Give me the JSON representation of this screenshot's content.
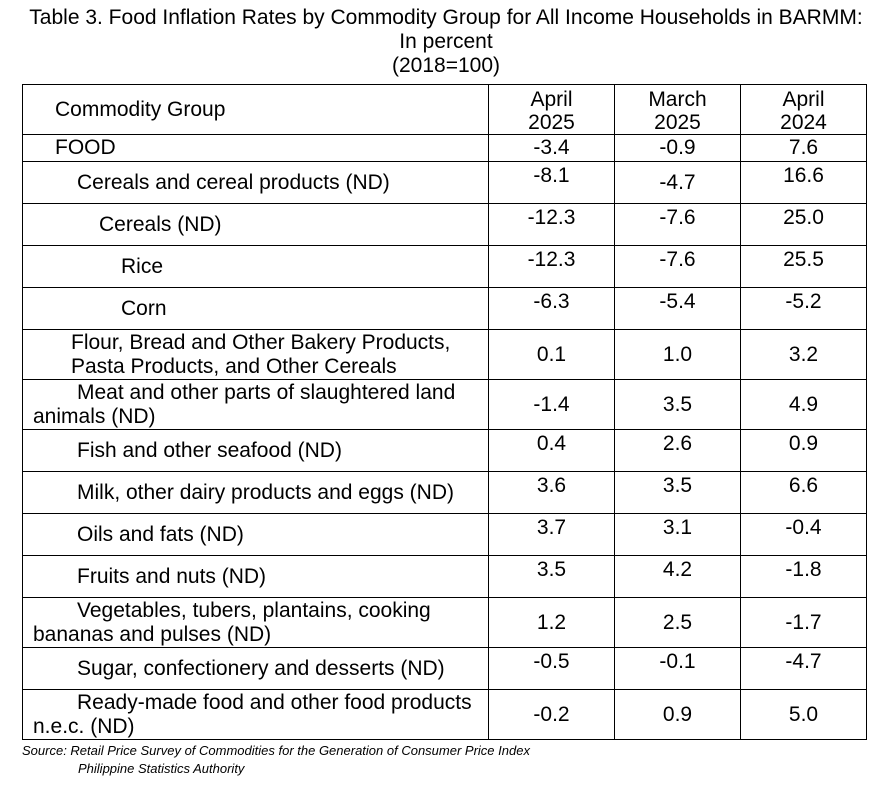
{
  "title": {
    "line1": "Table 3. Food Inflation Rates by Commodity Group for All Income Households in BARMM:",
    "line2": "In percent",
    "line3": "(2018=100)"
  },
  "table": {
    "header": {
      "label": "Commodity Group",
      "col1": {
        "month": "April",
        "year": "2025"
      },
      "col2": {
        "month": "March",
        "year": "2025"
      },
      "col3": {
        "month": "April",
        "year": "2024"
      }
    },
    "rows": [
      {
        "label": "FOOD",
        "v1": "-3.4",
        "v2": "-0.9",
        "v3": "7.6"
      },
      {
        "label": "Cereals and cereal products (ND)",
        "v1": "-8.1",
        "v2": "-4.7",
        "v3": "16.6"
      },
      {
        "label": "Cereals (ND)",
        "v1": "-12.3",
        "v2": "-7.6",
        "v3": "25.0"
      },
      {
        "label": "Rice",
        "v1": "-12.3",
        "v2": "-7.6",
        "v3": "25.5"
      },
      {
        "label": "Corn",
        "v1": "-6.3",
        "v2": "-5.4",
        "v3": "-5.2"
      },
      {
        "label_line1": "Flour, Bread and Other Bakery Products,",
        "label_line2": "Pasta Products, and Other Cereals",
        "v1": "0.1",
        "v2": "1.0",
        "v3": "3.2"
      },
      {
        "label_line1": "Meat and other parts of slaughtered land",
        "label_line2": "animals (ND)",
        "v1": "-1.4",
        "v2": "3.5",
        "v3": "4.9"
      },
      {
        "label": "Fish and other seafood (ND)",
        "v1": "0.4",
        "v2": "2.6",
        "v3": "0.9"
      },
      {
        "label": "Milk, other dairy products and eggs (ND)",
        "v1": "3.6",
        "v2": "3.5",
        "v3": "6.6"
      },
      {
        "label": "Oils and fats (ND)",
        "v1": "3.7",
        "v2": "3.1",
        "v3": "-0.4"
      },
      {
        "label": "Fruits and nuts (ND)",
        "v1": "3.5",
        "v2": "4.2",
        "v3": "-1.8"
      },
      {
        "label_line1": "Vegetables, tubers, plantains, cooking",
        "label_line2": "bananas and pulses (ND)",
        "v1": "1.2",
        "v2": "2.5",
        "v3": "-1.7"
      },
      {
        "label": "Sugar, confectionery and desserts (ND)",
        "v1": "-0.5",
        "v2": "-0.1",
        "v3": "-4.7"
      },
      {
        "label_line1": "Ready-made food and other food products",
        "label_line2": "n.e.c. (ND)",
        "v1": "-0.2",
        "v2": "0.9",
        "v3": "5.0"
      }
    ]
  },
  "source": {
    "line1": "Source: Retail Price Survey of Commodities for the Generation of Consumer Price Index",
    "line2": "Philippine Statistics Authority"
  }
}
